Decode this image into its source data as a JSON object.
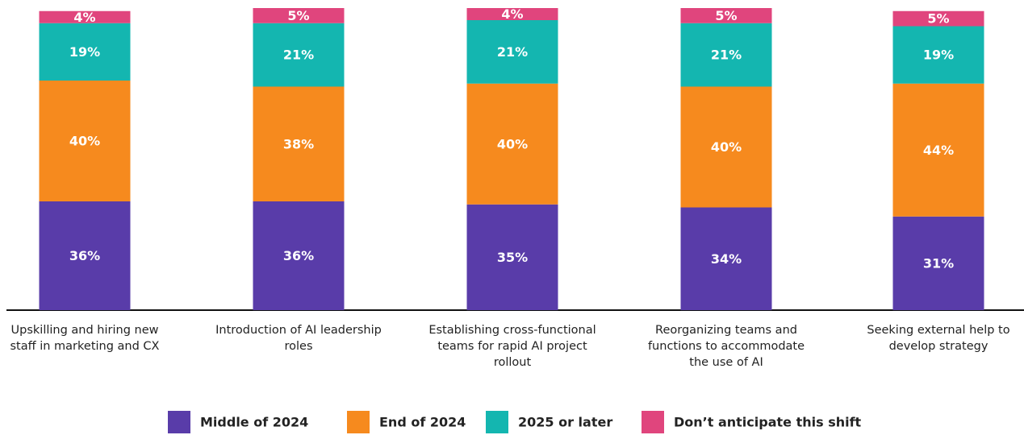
{
  "chart_data": {
    "type": "stacked_bar",
    "categories": [
      "Upskilling and hiring new staff in marketing and CX",
      "Introduction of AI leadership roles",
      "Establishing cross-functional teams for rapid AI project rollout",
      "Reorganizing teams and functions to accommodate the use of AI",
      "Seeking external help to develop strategy"
    ],
    "ylim": [
      0,
      100
    ],
    "series": [
      {
        "name": "Middle of 2024",
        "color": "#593ca9",
        "values": [
          36,
          36,
          35,
          34,
          31
        ],
        "value_labels": [
          "36%",
          "36%",
          "35%",
          "34%",
          "31%"
        ]
      },
      {
        "name": "End of 2024",
        "color": "#f68a1e",
        "values": [
          40,
          38,
          40,
          40,
          44
        ],
        "value_labels": [
          "40%",
          "38%",
          "40%",
          "40%",
          "44%"
        ]
      },
      {
        "name": "2025 or later",
        "color": "#14b6b0",
        "values": [
          19,
          21,
          21,
          21,
          19
        ],
        "value_labels": [
          "19%",
          "21%",
          "21%",
          "21%",
          "19%"
        ]
      },
      {
        "name": "Don’t anticipate this shift",
        "color": "#e0457d",
        "values": [
          4,
          5,
          4,
          5,
          5
        ],
        "value_labels": [
          "4%",
          "5%",
          "4%",
          "5%",
          "5%"
        ]
      }
    ],
    "legend": "bottom"
  }
}
